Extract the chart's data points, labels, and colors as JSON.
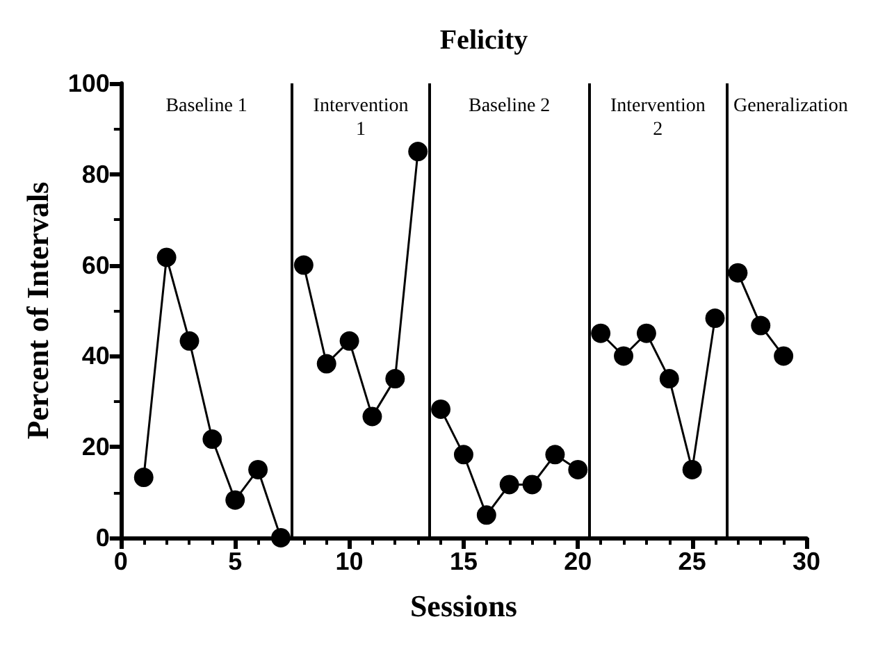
{
  "chart_data": {
    "type": "line",
    "title": "Felicity",
    "xlabel": "Sessions",
    "ylabel": "Percent of Intervals",
    "series": [
      {
        "color": "#000000",
        "x": [
          1,
          2,
          3,
          4,
          5,
          6,
          7
        ],
        "values": [
          13.3,
          61.7,
          43.3,
          21.7,
          8.3,
          15,
          0
        ]
      },
      {
        "color": "#000000",
        "x": [
          8,
          9,
          10,
          11,
          12,
          13
        ],
        "values": [
          60,
          38.3,
          43.3,
          26.7,
          35,
          85
        ]
      },
      {
        "color": "#000000",
        "x": [
          14,
          15,
          16,
          17,
          18,
          19,
          20
        ],
        "values": [
          28.3,
          18.3,
          5,
          11.7,
          11.7,
          18.3,
          15
        ]
      },
      {
        "color": "#000000",
        "x": [
          21,
          22,
          23,
          24,
          25,
          26
        ],
        "values": [
          45,
          40,
          45,
          35,
          15,
          48.3
        ]
      },
      {
        "color": "#000000",
        "x": [
          27,
          28,
          29
        ],
        "values": [
          58.3,
          46.7,
          40
        ]
      }
    ],
    "xlim": [
      0,
      30
    ],
    "xticks": [
      0,
      5,
      10,
      15,
      20,
      25,
      30
    ],
    "ylim": [
      0,
      100
    ],
    "yticks": [
      0,
      20,
      40,
      60,
      80,
      100
    ],
    "grid": false,
    "marker": "circle",
    "line_style": "solid",
    "ref_lines": [
      {
        "axis": "x",
        "value": 7.5,
        "color": "#000000"
      },
      {
        "axis": "x",
        "value": 13.5,
        "color": "#000000"
      },
      {
        "axis": "x",
        "value": 20.5,
        "color": "#000000"
      },
      {
        "axis": "x",
        "value": 26.5,
        "color": "#000000"
      }
    ],
    "annotations": [
      "Baseline 1",
      "Intervention\n1",
      "Baseline 2",
      "Intervention\n2",
      "Generalization"
    ]
  }
}
